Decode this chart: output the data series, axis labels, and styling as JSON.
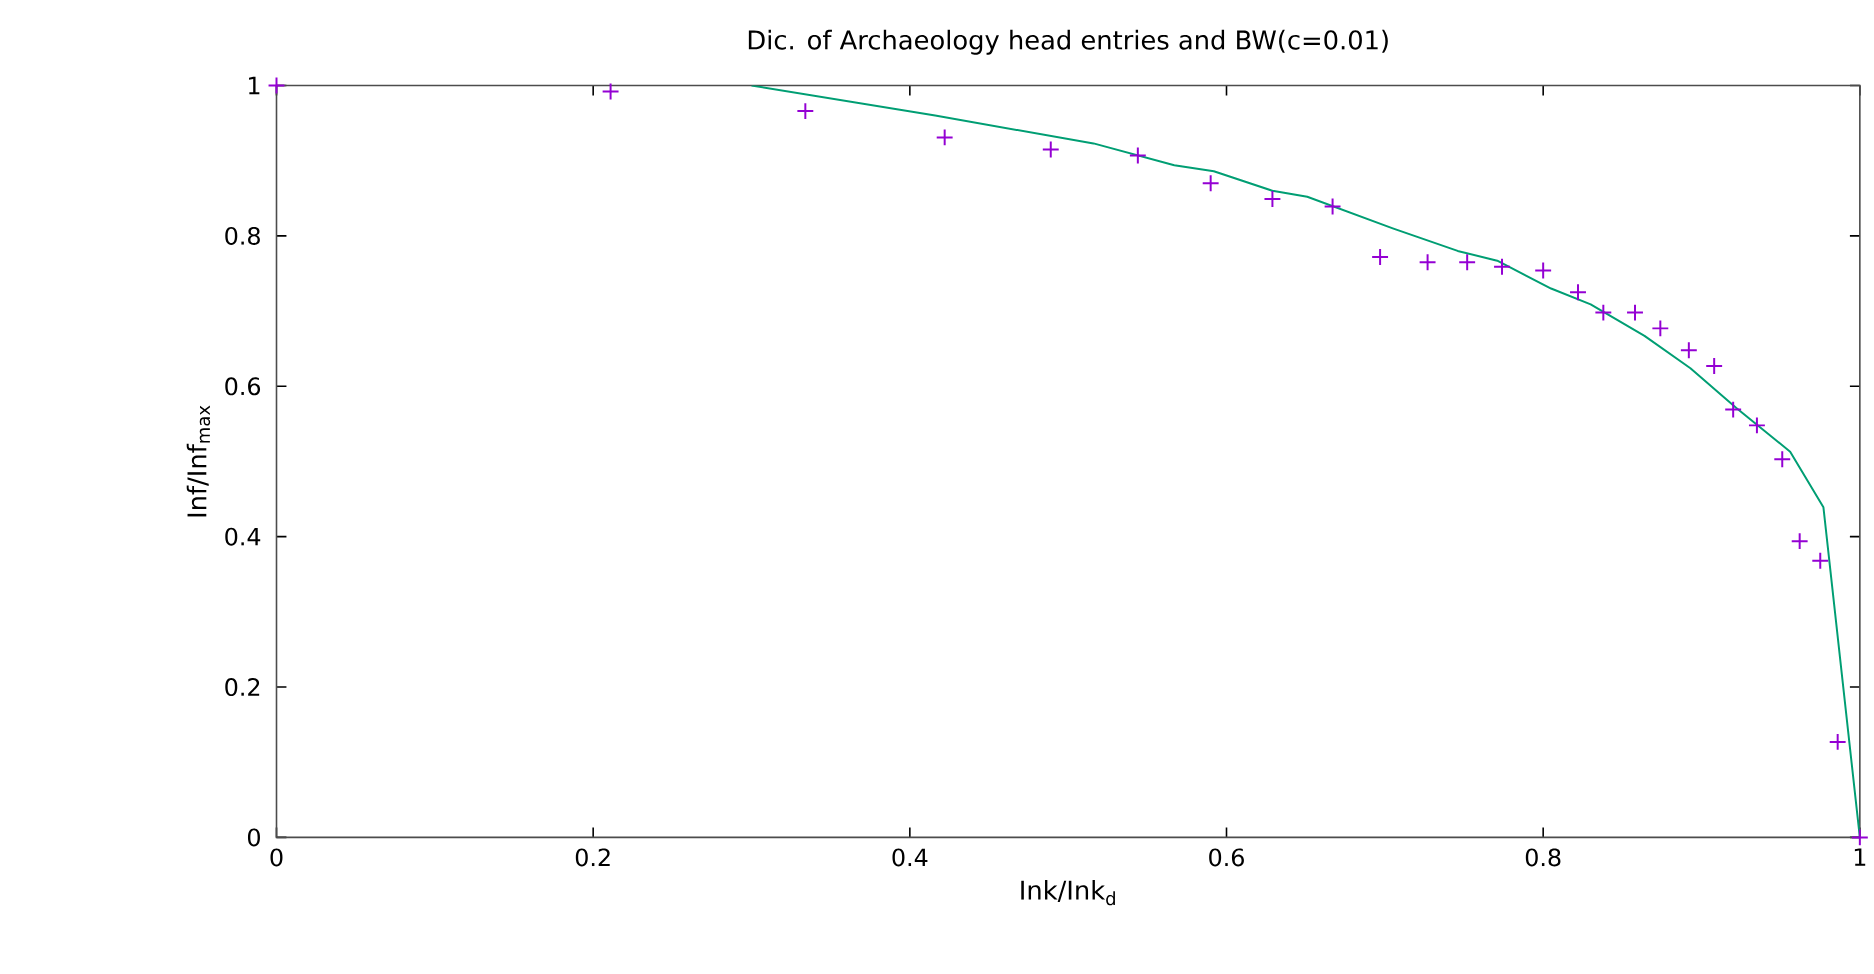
{
  "chart_data": {
    "type": "scatter",
    "title": "Dic. of Archaeology head entries and BW(c=0.01)",
    "xlabel": "Ink/Ink$_{d}$",
    "ylabel": "Inf/Inf$_{max}$",
    "xlim": [
      0,
      1
    ],
    "ylim": [
      0,
      1
    ],
    "xticks": [
      0,
      0.2,
      0.4,
      0.6,
      0.8,
      1
    ],
    "yticks": [
      0,
      0.2,
      0.4,
      0.6,
      0.8,
      1
    ],
    "grid": false,
    "series": [
      {
        "color": "#9400d3",
        "marker": "cross",
        "x": [
          0,
          0.211,
          0.334,
          0.422,
          0.489,
          0.544,
          0.59,
          0.629,
          0.667,
          0.697,
          0.727,
          0.752,
          0.774,
          0.8,
          0.822,
          0.838,
          0.858,
          0.874,
          0.892,
          0.908,
          0.92,
          0.935,
          0.951,
          0.962,
          0.975,
          0.986,
          1
        ],
        "values": [
          1,
          0.992,
          0.966,
          0.931,
          0.915,
          0.907,
          0.87,
          0.849,
          0.839,
          0.772,
          0.765,
          0.765,
          0.759,
          0.754,
          0.725,
          0.698,
          0.698,
          0.677,
          0.648,
          0.627,
          0.569,
          0.548,
          0.503,
          0.394,
          0.368,
          0.127,
          0
        ]
      },
      {
        "type": "line",
        "color": "#009e73",
        "marker": "none",
        "line_style": "solid",
        "x": [
          0.3,
          0.416,
          0.516,
          0.567,
          0.592,
          0.629,
          0.651,
          0.705,
          0.746,
          0.771,
          0.805,
          0.83,
          0.864,
          0.893,
          0.922,
          0.956,
          0.977,
          1
        ],
        "values": [
          1,
          0.96,
          0.923,
          0.894,
          0.886,
          0.86,
          0.852,
          0.81,
          0.78,
          0.767,
          0.73,
          0.709,
          0.667,
          0.624,
          0.571,
          0.513,
          0.439,
          0
        ]
      }
    ]
  }
}
